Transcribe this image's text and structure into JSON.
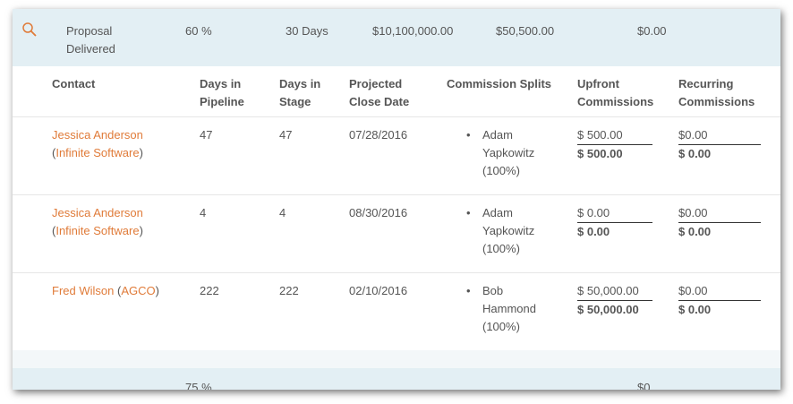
{
  "stage": {
    "name": "Proposal Delivered",
    "probability": "60 %",
    "duration": "30 Days",
    "value": "$10,100,000.00",
    "weighted": "$50,500.00",
    "commission": "$0.00"
  },
  "columns": {
    "contact": "Contact",
    "days_pipeline": "Days in Pipeline",
    "days_stage": "Days in Stage",
    "close_date": "Projected Close Date",
    "splits": "Commission Splits",
    "upfront": "Upfront Commissions",
    "recurring": "Recurring Commissions"
  },
  "rows": [
    {
      "contact": "Jessica Anderson",
      "company": "Infinite Software",
      "days_pipeline": "47",
      "days_stage": "47",
      "close_date": "07/28/2016",
      "split": "Adam Yapkowitz (100%)",
      "upfront_amount": "$ 500.00",
      "upfront_total": "$ 500.00",
      "recurring_amount": "$0.00",
      "recurring_total": "$ 0.00"
    },
    {
      "contact": "Jessica Anderson",
      "company": "Infinite Software",
      "days_pipeline": "4",
      "days_stage": "4",
      "close_date": "08/30/2016",
      "split": "Adam Yapkowitz (100%)",
      "upfront_amount": "$ 0.00",
      "upfront_total": "$ 0.00",
      "recurring_amount": "$0.00",
      "recurring_total": "$ 0.00"
    },
    {
      "contact": "Fred Wilson",
      "company": "AGCO",
      "days_pipeline": "222",
      "days_stage": "222",
      "close_date": "02/10/2016",
      "split": "Bob Hammond (100%)",
      "upfront_amount": "$ 50,000.00",
      "upfront_total": "$ 50,000.00",
      "recurring_amount": "$0.00",
      "recurring_total": "$ 0.00"
    }
  ],
  "next_stage": {
    "probability": "75 %",
    "commission": "$0"
  },
  "icons": {
    "search": "search-icon",
    "bullet": "•"
  },
  "colors": {
    "link": "#e07b39",
    "stage_bg": "#e3eff4"
  }
}
